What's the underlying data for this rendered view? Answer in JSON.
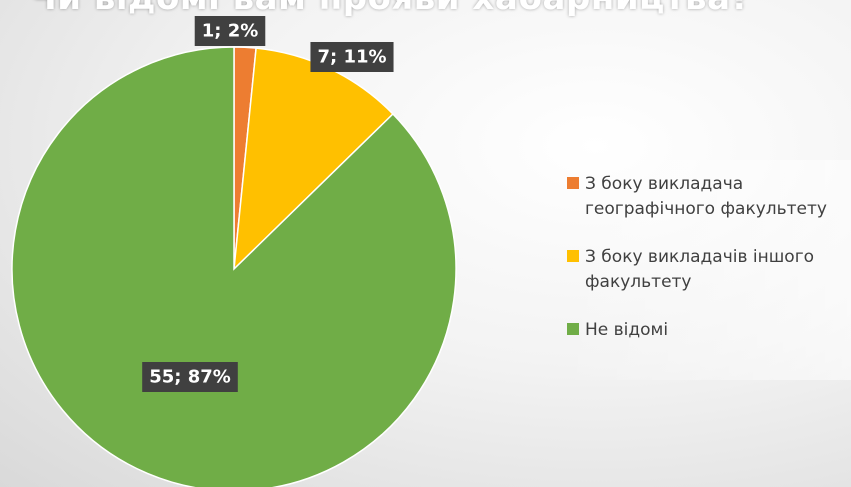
{
  "chart_data": {
    "type": "pie",
    "title": "Чи відомі вам прояви хабарництва?",
    "categories": [
      "З боку викладача географічного факультету",
      "З боку викладачів іншого факультету",
      "Не відомі"
    ],
    "values": [
      1,
      7,
      55
    ],
    "percent_labels": [
      "1; 2%",
      "7; 11%",
      "55; 87%"
    ],
    "colors": [
      "#ed7d31",
      "#ffc000",
      "#70ad47"
    ],
    "legend_placement": "right",
    "start_angle_deg": 0,
    "direction": "clockwise"
  }
}
